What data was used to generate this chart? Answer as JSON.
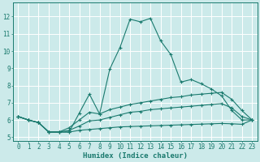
{
  "xlabel": "Humidex (Indice chaleur)",
  "ylabel": "",
  "xlim": [
    -0.5,
    23.5
  ],
  "ylim": [
    4.8,
    12.8
  ],
  "background_color": "#cceaea",
  "grid_color": "#ffffff",
  "line_color": "#1a7a6e",
  "series": [
    {
      "x": [
        0,
        1,
        2,
        3,
        4,
        5,
        6,
        7,
        8,
        9,
        10,
        11,
        12,
        13,
        14,
        15,
        16,
        17,
        18,
        19,
        20,
        21,
        22,
        23
      ],
      "y": [
        6.2,
        6.0,
        5.85,
        5.3,
        5.3,
        5.3,
        6.4,
        7.5,
        6.35,
        8.95,
        10.2,
        11.85,
        11.7,
        11.9,
        10.6,
        9.8,
        8.2,
        8.35,
        8.1,
        7.8,
        7.4,
        6.55,
        6.0,
        6.0
      ]
    },
    {
      "x": [
        0,
        1,
        2,
        3,
        4,
        5,
        6,
        7,
        8,
        9,
        10,
        11,
        12,
        13,
        14,
        15,
        16,
        17,
        18,
        19,
        20,
        21,
        22,
        23
      ],
      "y": [
        6.2,
        6.0,
        5.85,
        5.3,
        5.3,
        5.55,
        6.0,
        6.45,
        6.35,
        6.6,
        6.75,
        6.9,
        7.0,
        7.1,
        7.2,
        7.3,
        7.35,
        7.45,
        7.5,
        7.55,
        7.6,
        7.2,
        6.55,
        6.0
      ]
    },
    {
      "x": [
        0,
        1,
        2,
        3,
        4,
        5,
        6,
        7,
        8,
        9,
        10,
        11,
        12,
        13,
        14,
        15,
        16,
        17,
        18,
        19,
        20,
        21,
        22,
        23
      ],
      "y": [
        6.2,
        6.0,
        5.85,
        5.3,
        5.3,
        5.4,
        5.65,
        5.95,
        6.0,
        6.15,
        6.3,
        6.45,
        6.5,
        6.6,
        6.65,
        6.7,
        6.75,
        6.8,
        6.85,
        6.9,
        6.95,
        6.7,
        6.2,
        6.0
      ]
    },
    {
      "x": [
        0,
        1,
        2,
        3,
        4,
        5,
        6,
        7,
        8,
        9,
        10,
        11,
        12,
        13,
        14,
        15,
        16,
        17,
        18,
        19,
        20,
        21,
        22,
        23
      ],
      "y": [
        6.2,
        6.0,
        5.85,
        5.3,
        5.3,
        5.3,
        5.4,
        5.45,
        5.5,
        5.55,
        5.6,
        5.62,
        5.64,
        5.66,
        5.68,
        5.7,
        5.72,
        5.74,
        5.76,
        5.78,
        5.8,
        5.78,
        5.75,
        6.0
      ]
    }
  ],
  "xticks": [
    0,
    1,
    2,
    3,
    4,
    5,
    6,
    7,
    8,
    9,
    10,
    11,
    12,
    13,
    14,
    15,
    16,
    17,
    18,
    19,
    20,
    21,
    22,
    23
  ],
  "yticks": [
    5,
    6,
    7,
    8,
    9,
    10,
    11,
    12
  ],
  "axis_fontsize": 6.5,
  "tick_fontsize": 5.5
}
